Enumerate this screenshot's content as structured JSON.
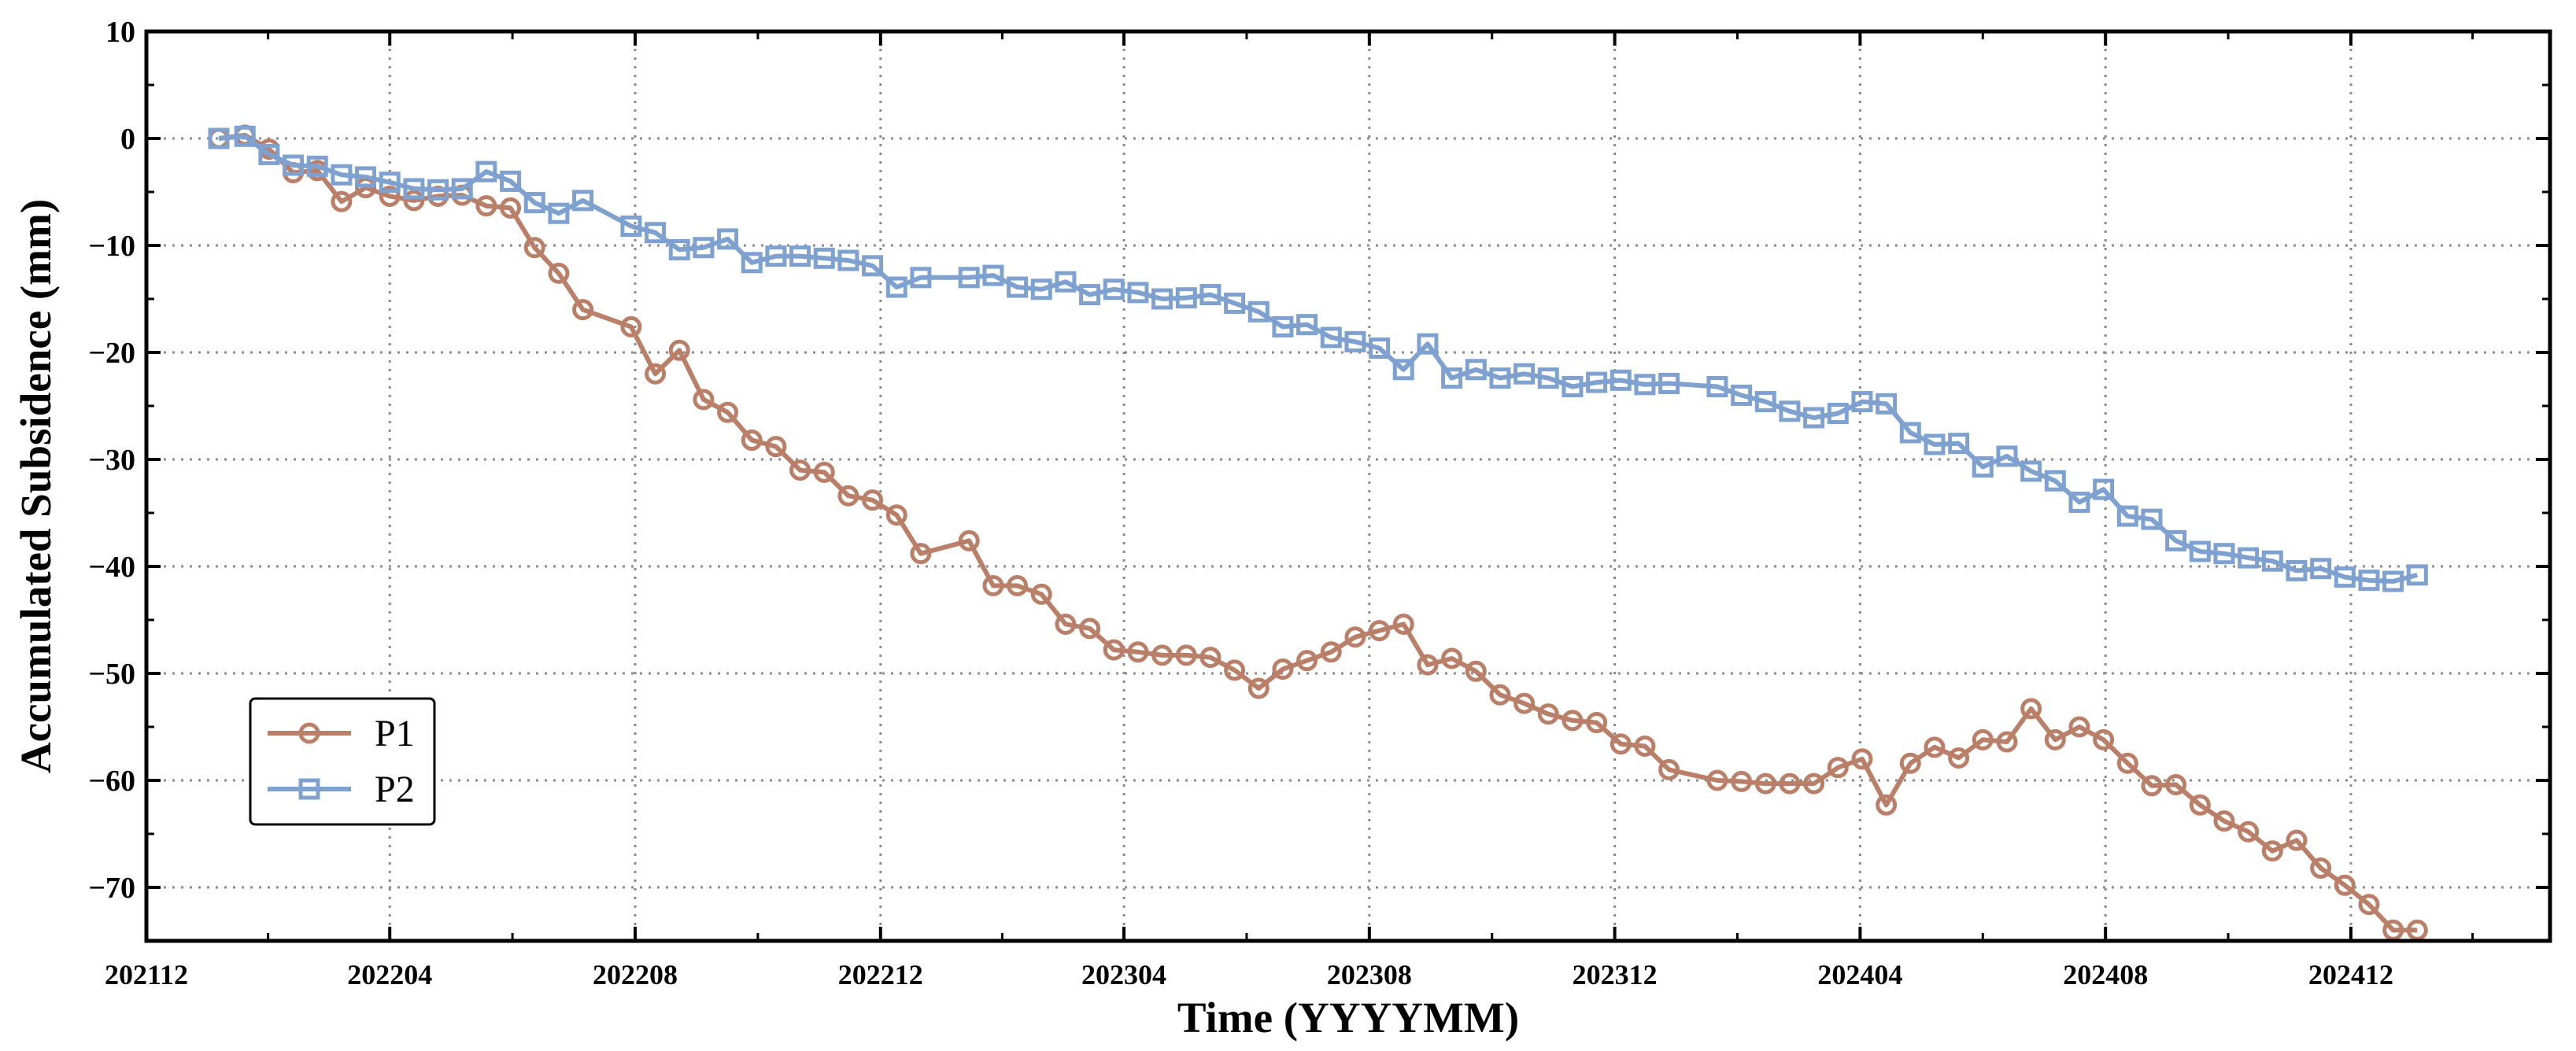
{
  "chart_data": {
    "type": "line",
    "xlabel": "Time (YYYYMM)",
    "ylabel": "Accumulated Subsidence (mm)",
    "xlim": [
      "2021-12-01",
      "2025-03-10"
    ],
    "ylim": [
      -75,
      10
    ],
    "x_ticks": [
      "2021-12-01",
      "2022-04-01",
      "2022-08-01",
      "2022-12-01",
      "2023-04-01",
      "2023-08-01",
      "2023-12-01",
      "2024-04-01",
      "2024-08-01",
      "2024-12-01"
    ],
    "x_tick_labels": [
      "202112",
      "202204",
      "202208",
      "202212",
      "202304",
      "202308",
      "202312",
      "202404",
      "202408",
      "202412"
    ],
    "y_ticks": [
      10,
      0,
      -10,
      -20,
      -30,
      -40,
      -50,
      -60,
      -70
    ],
    "y_tick_labels": [
      "10",
      "0",
      "−10",
      "−20",
      "−30",
      "−40",
      "−50",
      "−60",
      "−70"
    ],
    "grid": true,
    "legend_position": "lower-left",
    "series": [
      {
        "name": "P1",
        "color": "#B97F68",
        "marker": "circle",
        "x": [
          "2022-01-06",
          "2022-01-19",
          "2022-01-31",
          "2022-02-12",
          "2022-02-24",
          "2022-03-08",
          "2022-03-20",
          "2022-04-01",
          "2022-04-13",
          "2022-04-25",
          "2022-05-07",
          "2022-05-19",
          "2022-05-31",
          "2022-06-12",
          "2022-06-24",
          "2022-07-06",
          "2022-07-30",
          "2022-08-11",
          "2022-08-23",
          "2022-09-04",
          "2022-09-16",
          "2022-09-28",
          "2022-10-10",
          "2022-10-22",
          "2022-11-03",
          "2022-11-15",
          "2022-11-27",
          "2022-12-09",
          "2022-12-21",
          "2023-01-14",
          "2023-01-26",
          "2023-02-07",
          "2023-02-19",
          "2023-03-03",
          "2023-03-15",
          "2023-03-27",
          "2023-04-08",
          "2023-04-20",
          "2023-05-02",
          "2023-05-14",
          "2023-05-26",
          "2023-06-07",
          "2023-06-19",
          "2023-07-01",
          "2023-07-13",
          "2023-07-25",
          "2023-08-06",
          "2023-08-18",
          "2023-08-30",
          "2023-09-11",
          "2023-09-23",
          "2023-10-05",
          "2023-10-17",
          "2023-10-29",
          "2023-11-10",
          "2023-11-22",
          "2023-12-04",
          "2023-12-16",
          "2023-12-28",
          "2024-01-21",
          "2024-02-02",
          "2024-02-14",
          "2024-02-26",
          "2024-03-09",
          "2024-03-21",
          "2024-04-02",
          "2024-04-14",
          "2024-04-26",
          "2024-05-08",
          "2024-05-20",
          "2024-06-01",
          "2024-06-13",
          "2024-06-25",
          "2024-07-07",
          "2024-07-19",
          "2024-07-31",
          "2024-08-12",
          "2024-08-24",
          "2024-09-05",
          "2024-09-17",
          "2024-09-29",
          "2024-10-11",
          "2024-10-23",
          "2024-11-04",
          "2024-11-16",
          "2024-11-28",
          "2024-12-10",
          "2024-12-22",
          "2025-01-03"
        ],
        "y": [
          0,
          0.3,
          -1.0,
          -3.2,
          -3.0,
          -5.9,
          -4.6,
          -5.4,
          -5.8,
          -5.4,
          -5.3,
          -6.3,
          -6.5,
          -10.2,
          -12.6,
          -16.0,
          -17.6,
          -22.0,
          -19.8,
          -24.4,
          -25.6,
          -28.2,
          -28.8,
          -31.0,
          -31.2,
          -33.4,
          -33.8,
          -35.2,
          -38.8,
          -37.6,
          -41.8,
          -41.8,
          -42.6,
          -45.4,
          -45.8,
          -47.8,
          -48.0,
          -48.3,
          -48.3,
          -48.5,
          -49.7,
          -51.4,
          -49.6,
          -48.8,
          -48.0,
          -46.6,
          -46.0,
          -45.4,
          -49.2,
          -48.6,
          -49.8,
          -52.0,
          -52.8,
          -53.8,
          -54.4,
          -54.6,
          -56.6,
          -56.8,
          -59.0,
          -60.0,
          -60.1,
          -60.3,
          -60.3,
          -60.3,
          -58.8,
          -58.0,
          -62.3,
          -58.4,
          -56.9,
          -57.9,
          -56.2,
          -56.4,
          -53.3,
          -56.2,
          -55.0,
          -56.2,
          -58.4,
          -60.5,
          -60.4,
          -62.3,
          -63.8,
          -64.8,
          -66.6,
          -65.6,
          -68.2,
          -69.8,
          -71.6,
          -74.0,
          -74.0
        ]
      },
      {
        "name": "P2",
        "color": "#7EA1CF",
        "marker": "square",
        "x": [
          "2022-01-06",
          "2022-01-19",
          "2022-01-31",
          "2022-02-12",
          "2022-02-24",
          "2022-03-08",
          "2022-03-20",
          "2022-04-01",
          "2022-04-13",
          "2022-04-25",
          "2022-05-07",
          "2022-05-19",
          "2022-05-31",
          "2022-06-12",
          "2022-06-24",
          "2022-07-06",
          "2022-07-30",
          "2022-08-11",
          "2022-08-23",
          "2022-09-04",
          "2022-09-16",
          "2022-09-28",
          "2022-10-10",
          "2022-10-22",
          "2022-11-03",
          "2022-11-15",
          "2022-11-27",
          "2022-12-09",
          "2022-12-21",
          "2023-01-14",
          "2023-01-26",
          "2023-02-07",
          "2023-02-19",
          "2023-03-03",
          "2023-03-15",
          "2023-03-27",
          "2023-04-08",
          "2023-04-20",
          "2023-05-02",
          "2023-05-14",
          "2023-05-26",
          "2023-06-07",
          "2023-06-19",
          "2023-07-01",
          "2023-07-13",
          "2023-07-25",
          "2023-08-06",
          "2023-08-18",
          "2023-08-30",
          "2023-09-11",
          "2023-09-23",
          "2023-10-05",
          "2023-10-17",
          "2023-10-29",
          "2023-11-10",
          "2023-11-22",
          "2023-12-04",
          "2023-12-16",
          "2023-12-28",
          "2024-01-21",
          "2024-02-02",
          "2024-02-14",
          "2024-02-26",
          "2024-03-09",
          "2024-03-21",
          "2024-04-02",
          "2024-04-14",
          "2024-04-26",
          "2024-05-08",
          "2024-05-20",
          "2024-06-01",
          "2024-06-13",
          "2024-06-25",
          "2024-07-07",
          "2024-07-19",
          "2024-07-31",
          "2024-08-12",
          "2024-08-24",
          "2024-09-05",
          "2024-09-17",
          "2024-09-29",
          "2024-10-11",
          "2024-10-23",
          "2024-11-04",
          "2024-11-16",
          "2024-11-28",
          "2024-12-10",
          "2024-12-22",
          "2025-01-03"
        ],
        "y": [
          0,
          0.2,
          -1.5,
          -2.5,
          -2.6,
          -3.4,
          -3.6,
          -4.1,
          -4.7,
          -4.8,
          -4.7,
          -3.1,
          -4.0,
          -6.0,
          -7.0,
          -5.8,
          -8.2,
          -8.8,
          -10.4,
          -10.2,
          -9.4,
          -11.6,
          -11.0,
          -11.0,
          -11.2,
          -11.4,
          -11.9,
          -13.9,
          -13.0,
          -13.0,
          -12.8,
          -13.9,
          -14.1,
          -13.4,
          -14.6,
          -14.1,
          -14.4,
          -15.0,
          -14.9,
          -14.6,
          -15.4,
          -16.2,
          -17.6,
          -17.4,
          -18.6,
          -19.0,
          -19.6,
          -21.6,
          -19.2,
          -22.4,
          -21.6,
          -22.4,
          -22.0,
          -22.4,
          -23.2,
          -22.8,
          -22.6,
          -23.0,
          -22.9,
          -23.2,
          -24.0,
          -24.6,
          -25.5,
          -26.1,
          -25.7,
          -24.6,
          -24.8,
          -27.5,
          -28.6,
          -28.5,
          -30.7,
          -29.7,
          -31.1,
          -32.0,
          -34.0,
          -32.8,
          -35.3,
          -35.6,
          -37.6,
          -38.6,
          -38.8,
          -39.2,
          -39.5,
          -40.4,
          -40.2,
          -41.0,
          -41.3,
          -41.4,
          -40.8
        ]
      }
    ]
  }
}
